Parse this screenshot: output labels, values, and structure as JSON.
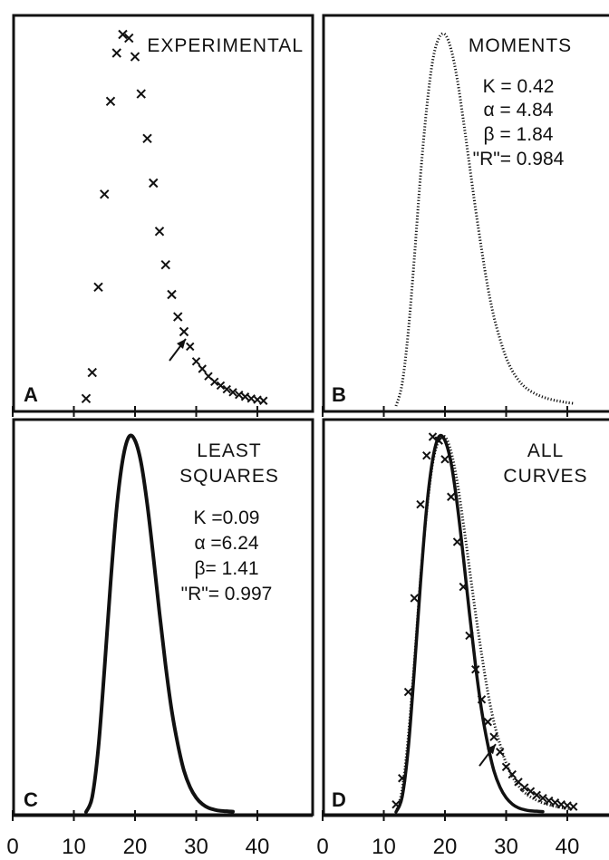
{
  "chart_data": [
    {
      "panel": "A",
      "type": "scatter",
      "title": "EXPERIMENTAL",
      "xlim": [
        0,
        50
      ],
      "ylim": [
        0,
        1
      ],
      "grid": false,
      "points": [
        {
          "x": 12,
          "y": 0.02
        },
        {
          "x": 13,
          "y": 0.09
        },
        {
          "x": 14,
          "y": 0.32
        },
        {
          "x": 15,
          "y": 0.57
        },
        {
          "x": 16,
          "y": 0.82
        },
        {
          "x": 17,
          "y": 0.95
        },
        {
          "x": 18,
          "y": 1.0
        },
        {
          "x": 19,
          "y": 0.99
        },
        {
          "x": 20,
          "y": 0.94
        },
        {
          "x": 21,
          "y": 0.84
        },
        {
          "x": 22,
          "y": 0.72
        },
        {
          "x": 23,
          "y": 0.6
        },
        {
          "x": 24,
          "y": 0.47
        },
        {
          "x": 25,
          "y": 0.38
        },
        {
          "x": 26,
          "y": 0.3
        },
        {
          "x": 27,
          "y": 0.24
        },
        {
          "x": 28,
          "y": 0.2
        },
        {
          "x": 29,
          "y": 0.16
        },
        {
          "x": 30,
          "y": 0.12
        },
        {
          "x": 31,
          "y": 0.1
        },
        {
          "x": 32,
          "y": 0.08
        },
        {
          "x": 33,
          "y": 0.065
        },
        {
          "x": 34,
          "y": 0.055
        },
        {
          "x": 35,
          "y": 0.045
        },
        {
          "x": 36,
          "y": 0.037
        },
        {
          "x": 37,
          "y": 0.03
        },
        {
          "x": 38,
          "y": 0.025
        },
        {
          "x": 39,
          "y": 0.02
        },
        {
          "x": 40,
          "y": 0.017
        },
        {
          "x": 41,
          "y": 0.014
        }
      ],
      "arrow_at": {
        "x": 28,
        "y": 0.2
      }
    },
    {
      "panel": "B",
      "type": "line",
      "title": "MOMENTS",
      "params": [
        "K = 0.42",
        "α = 4.84",
        "β = 1.84",
        "\"R\"= 0.984"
      ],
      "xlim": [
        0,
        50
      ],
      "ylim": [
        0,
        1
      ],
      "grid": false,
      "curve": {
        "style": "dotted",
        "x": [
          12,
          13,
          14,
          15,
          16,
          17,
          18,
          19,
          20,
          21,
          22,
          23,
          24,
          25,
          26,
          27,
          28,
          29,
          30,
          31,
          32,
          33,
          34,
          35,
          36,
          37,
          38,
          39,
          40,
          41
        ],
        "y": [
          0.0,
          0.06,
          0.2,
          0.4,
          0.62,
          0.8,
          0.93,
          0.99,
          1.0,
          0.96,
          0.88,
          0.77,
          0.65,
          0.53,
          0.42,
          0.32,
          0.24,
          0.18,
          0.13,
          0.095,
          0.07,
          0.052,
          0.04,
          0.031,
          0.024,
          0.019,
          0.015,
          0.012,
          0.009,
          0.007
        ]
      }
    },
    {
      "panel": "C",
      "type": "line",
      "title": "LEAST SQUARES",
      "title_lines": [
        "LEAST",
        "SQUARES"
      ],
      "params": [
        "K =0.09",
        "α =6.24",
        "β= 1.41",
        "\"R\"= 0.997"
      ],
      "xlim": [
        0,
        50
      ],
      "ylim": [
        0,
        1
      ],
      "grid": false,
      "x_ticks": [
        "0",
        "10",
        "20",
        "30",
        "40"
      ],
      "curve": {
        "style": "solid",
        "x": [
          12,
          13,
          14,
          15,
          16,
          17,
          18,
          19,
          20,
          21,
          22,
          23,
          24,
          25,
          26,
          27,
          28,
          29,
          30,
          31,
          32,
          33,
          34,
          35,
          36
        ],
        "y": [
          0.0,
          0.04,
          0.17,
          0.38,
          0.61,
          0.81,
          0.94,
          1.0,
          0.99,
          0.93,
          0.82,
          0.68,
          0.53,
          0.39,
          0.27,
          0.18,
          0.11,
          0.066,
          0.038,
          0.021,
          0.011,
          0.006,
          0.003,
          0.002,
          0.001
        ]
      }
    },
    {
      "panel": "D",
      "type": "line",
      "title": "ALL CURVES",
      "title_lines": [
        "ALL",
        "CURVES"
      ],
      "xlim": [
        0,
        50
      ],
      "ylim": [
        0,
        1
      ],
      "grid": false,
      "x_ticks": [
        "0",
        "10",
        "20",
        "30",
        "40"
      ],
      "series": [
        {
          "style": "dotted",
          "ref": "B"
        },
        {
          "style": "solid",
          "ref": "C"
        },
        {
          "style": "x-markers",
          "ref": "A"
        }
      ],
      "arrow_at": {
        "x": 28,
        "y": 0.2
      }
    }
  ]
}
